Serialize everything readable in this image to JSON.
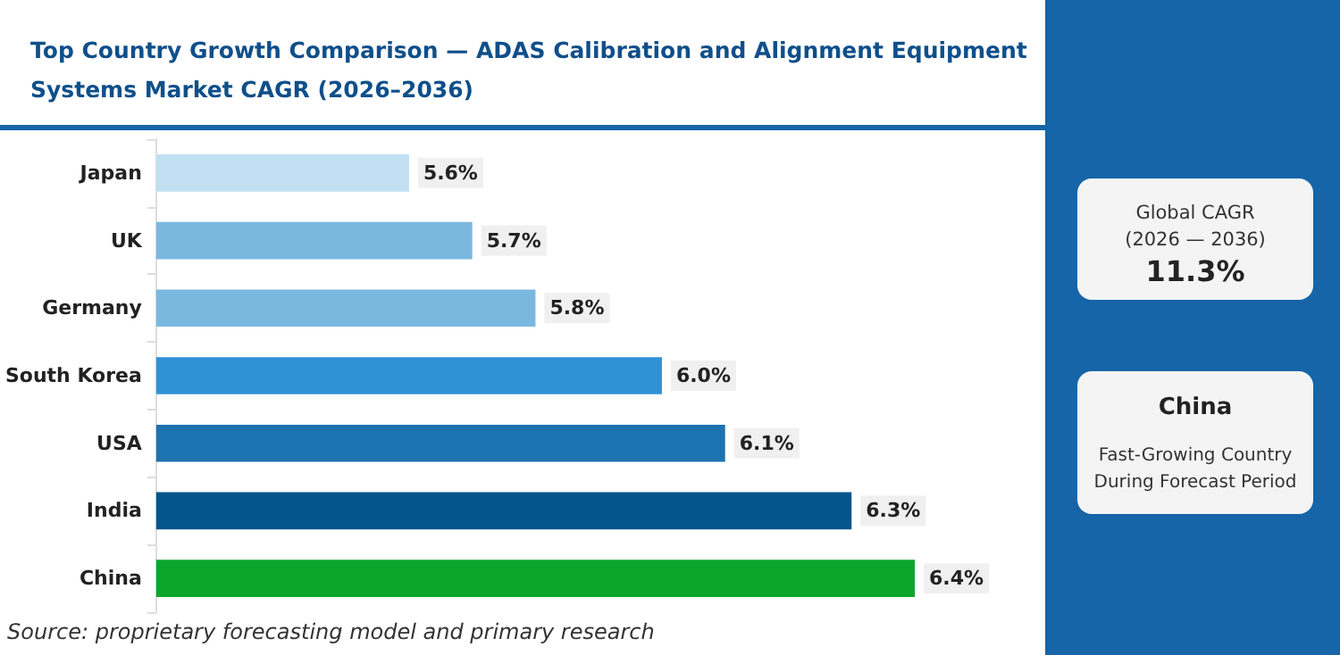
{
  "chart_data": {
    "type": "bar",
    "orientation": "horizontal",
    "title": "Top Country Growth Comparison — ADAS Calibration and Alignment Equipment\nSystems Market CAGR (2026–2036)",
    "categories": [
      "Japan",
      "UK",
      "Germany",
      "South Korea",
      "USA",
      "India",
      "China"
    ],
    "values": [
      5.6,
      5.7,
      5.8,
      6.0,
      6.1,
      6.3,
      6.4
    ],
    "colors": [
      "#c0e0f2",
      "#7ab8e0",
      "#7ab8e0",
      "#3092d6",
      "#1d72b0",
      "#04558c",
      "#0ca52c"
    ],
    "value_labels": [
      "5.6%",
      "5.7%",
      "5.8%",
      "6.0%",
      "6.1%",
      "6.3%",
      "6.4%"
    ],
    "xlim": [
      5.2,
      6.4
    ],
    "tick_labels": "y",
    "grid": false,
    "annotations": [
      "Source: proprietary forecasting model and primary research",
      "Global CAGR\n(2026 — 2036)",
      "11.3%",
      "China",
      "Fast-Growing Country\nDuring Forecast Period"
    ]
  }
}
